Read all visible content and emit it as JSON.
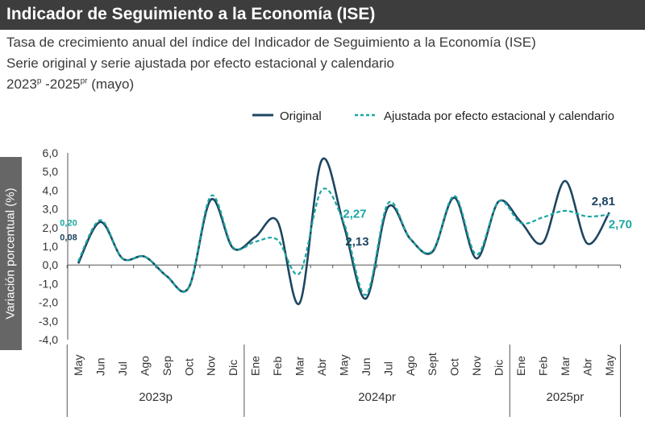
{
  "header": {
    "title": "Indicador de Seguimiento a la Economía (ISE)",
    "subtitle1": "Tasa de crecimiento anual del índice del Indicador de Seguimiento a la Economía (ISE)",
    "subtitle2": "Serie original y serie ajustada por efecto estacional y calendario",
    "period_start": "2023",
    "period_start_sup": "p",
    "period_sep": " -2025",
    "period_end_sup": "pr",
    "period_note": " (mayo)"
  },
  "colors": {
    "original": "#1e4560",
    "adjusted": "#1aa6a1",
    "title_bg": "#3d3d3d",
    "axis": "#555555"
  },
  "chart_data": {
    "type": "line",
    "title": "Indicador de Seguimiento a la Economía (ISE)",
    "ylabel": "Variación porcentual (%)",
    "ylim": [
      -4.0,
      6.0
    ],
    "yticks": [
      -4.0,
      -3.0,
      -2.0,
      -1.0,
      0.0,
      1.0,
      2.0,
      3.0,
      4.0,
      5.0,
      6.0
    ],
    "ytick_labels": [
      "-4,0",
      "-3,0",
      "-2,0",
      "-1,0",
      "0,0",
      "1,0",
      "2,0",
      "3,0",
      "4,0",
      "5,0",
      "6,0"
    ],
    "categories": [
      "May",
      "Jun",
      "Jul",
      "Ago",
      "Sep",
      "Oct",
      "Nov",
      "Dic",
      "Ene",
      "Feb",
      "Mar",
      "Abr",
      "May",
      "Jun",
      "Jul",
      "Ago",
      "Sept",
      "Oct",
      "Nov",
      "Dic",
      "Ene",
      "Feb",
      "Mar",
      "Abr",
      "May"
    ],
    "groups": [
      {
        "label": "2023p",
        "start": 0,
        "end": 7
      },
      {
        "label": "2024pr",
        "start": 8,
        "end": 19
      },
      {
        "label": "2025pr",
        "start": 20,
        "end": 24
      }
    ],
    "series": [
      {
        "name": "Original",
        "values": [
          0.08,
          2.3,
          0.35,
          0.45,
          -0.6,
          -1.2,
          3.5,
          0.9,
          1.5,
          2.35,
          -2.05,
          5.6,
          2.13,
          -1.8,
          3.1,
          1.4,
          0.7,
          3.6,
          0.35,
          3.4,
          2.3,
          1.2,
          4.5,
          1.15,
          2.81
        ]
      },
      {
        "name": "Ajustada por efecto estacional y calendario",
        "values": [
          0.2,
          2.4,
          0.35,
          0.45,
          -0.6,
          -1.2,
          3.7,
          0.95,
          1.25,
          1.35,
          -0.45,
          4.0,
          2.27,
          -1.6,
          3.3,
          1.4,
          0.75,
          3.7,
          0.55,
          3.4,
          2.25,
          2.55,
          2.9,
          2.6,
          2.7
        ]
      }
    ],
    "legend_position": "top-right",
    "annotations": [
      {
        "text": "0,20",
        "series": 1,
        "index": 0
      },
      {
        "text": "0,08",
        "series": 0,
        "index": 0
      },
      {
        "text": "2,27",
        "series": 1,
        "index": 12
      },
      {
        "text": "2,13",
        "series": 0,
        "index": 12
      },
      {
        "text": "2,81",
        "series": 0,
        "index": 24
      },
      {
        "text": "2,70",
        "series": 1,
        "index": 24
      }
    ]
  }
}
